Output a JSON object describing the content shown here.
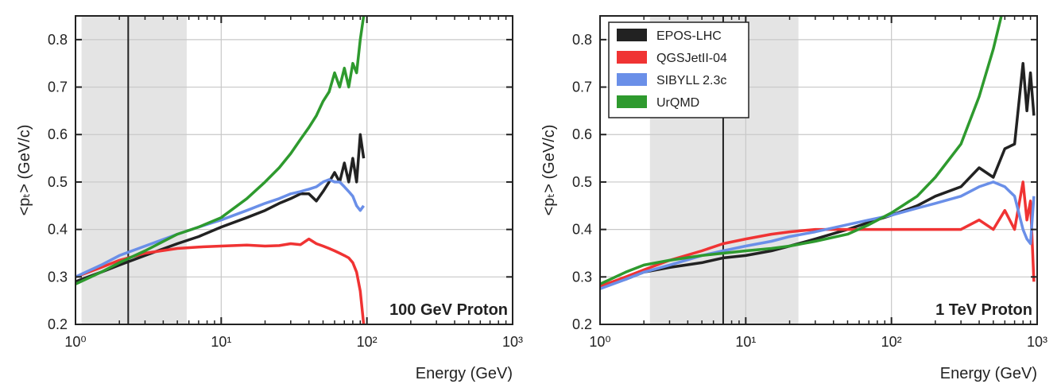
{
  "chart_data": [
    {
      "type": "line",
      "annotation": "100 GeV Proton",
      "xlabel": "Energy (GeV)",
      "ylabel": "<pₜ> (GeV/c)",
      "xscale": "log",
      "xlim": [
        1,
        1000
      ],
      "ylim": [
        0.2,
        0.85
      ],
      "grid": true,
      "legend": "none",
      "shaded_region": [
        1.1,
        5.8
      ],
      "vertical_line": 2.3,
      "x_tick_labels": [
        "10⁰",
        "10¹",
        "10²",
        "10³"
      ],
      "y_tick_labels": [
        "0.2",
        "0.3",
        "0.4",
        "0.5",
        "0.6",
        "0.7",
        "0.8"
      ],
      "series": [
        {
          "name": "EPOS-LHC",
          "color": "#222222",
          "x": [
            1,
            1.5,
            2,
            3,
            5,
            7,
            10,
            15,
            20,
            25,
            30,
            35,
            40,
            45,
            50,
            55,
            60,
            65,
            70,
            75,
            80,
            85,
            90,
            95
          ],
          "y": [
            0.29,
            0.31,
            0.325,
            0.345,
            0.37,
            0.385,
            0.405,
            0.425,
            0.44,
            0.455,
            0.465,
            0.475,
            0.475,
            0.46,
            0.48,
            0.5,
            0.52,
            0.5,
            0.54,
            0.5,
            0.55,
            0.5,
            0.6,
            0.55
          ]
        },
        {
          "name": "QGSJetII-04",
          "color": "#f03333",
          "x": [
            1,
            1.5,
            2,
            3,
            5,
            7,
            10,
            15,
            20,
            25,
            30,
            35,
            40,
            45,
            50,
            55,
            60,
            65,
            70,
            75,
            80,
            85,
            90,
            95
          ],
          "y": [
            0.3,
            0.32,
            0.335,
            0.35,
            0.36,
            0.363,
            0.365,
            0.367,
            0.365,
            0.366,
            0.37,
            0.368,
            0.38,
            0.37,
            0.365,
            0.36,
            0.355,
            0.35,
            0.345,
            0.34,
            0.33,
            0.31,
            0.27,
            0.2
          ]
        },
        {
          "name": "SIBYLL 2.3c",
          "color": "#6a8fe8",
          "x": [
            1,
            1.5,
            2,
            3,
            5,
            7,
            10,
            15,
            20,
            25,
            30,
            35,
            40,
            45,
            50,
            55,
            60,
            65,
            70,
            75,
            80,
            85,
            90,
            95
          ],
          "y": [
            0.3,
            0.325,
            0.345,
            0.365,
            0.39,
            0.405,
            0.42,
            0.44,
            0.455,
            0.465,
            0.475,
            0.48,
            0.485,
            0.49,
            0.5,
            0.505,
            0.5,
            0.5,
            0.49,
            0.48,
            0.47,
            0.45,
            0.44,
            0.45
          ]
        },
        {
          "name": "UrQMD",
          "color": "#2e9a2e",
          "x": [
            1,
            1.5,
            2,
            3,
            5,
            7,
            10,
            15,
            20,
            25,
            30,
            35,
            40,
            45,
            50,
            55,
            60,
            65,
            70,
            75,
            80,
            85,
            90,
            95
          ],
          "y": [
            0.285,
            0.31,
            0.33,
            0.355,
            0.39,
            0.405,
            0.425,
            0.465,
            0.5,
            0.53,
            0.56,
            0.59,
            0.615,
            0.64,
            0.67,
            0.69,
            0.73,
            0.7,
            0.74,
            0.7,
            0.75,
            0.73,
            0.8,
            0.85
          ]
        }
      ]
    },
    {
      "type": "line",
      "annotation": "1 TeV Proton",
      "xlabel": "Energy (GeV)",
      "ylabel": "<pₜ> (GeV/c)",
      "xscale": "log",
      "xlim": [
        1,
        1000
      ],
      "ylim": [
        0.2,
        0.85
      ],
      "grid": true,
      "legend": "top-left",
      "shaded_region": [
        2.2,
        23
      ],
      "vertical_line": 7,
      "x_tick_labels": [
        "10⁰",
        "10¹",
        "10²",
        "10³"
      ],
      "y_tick_labels": [
        "0.2",
        "0.3",
        "0.4",
        "0.5",
        "0.6",
        "0.7",
        "0.8"
      ],
      "series": [
        {
          "name": "EPOS-LHC",
          "color": "#222222",
          "x": [
            1,
            1.5,
            2,
            3,
            5,
            7,
            10,
            15,
            20,
            30,
            50,
            70,
            100,
            150,
            200,
            300,
            400,
            500,
            600,
            700,
            800,
            850,
            900,
            950
          ],
          "y": [
            0.28,
            0.295,
            0.31,
            0.32,
            0.33,
            0.34,
            0.345,
            0.355,
            0.365,
            0.38,
            0.4,
            0.415,
            0.43,
            0.45,
            0.47,
            0.49,
            0.53,
            0.51,
            0.57,
            0.58,
            0.75,
            0.65,
            0.73,
            0.64
          ]
        },
        {
          "name": "QGSJetII-04",
          "color": "#f03333",
          "x": [
            1,
            1.5,
            2,
            3,
            5,
            7,
            10,
            15,
            20,
            30,
            50,
            70,
            100,
            150,
            200,
            300,
            400,
            500,
            600,
            700,
            800,
            850,
            900,
            950
          ],
          "y": [
            0.28,
            0.3,
            0.315,
            0.335,
            0.355,
            0.37,
            0.38,
            0.39,
            0.395,
            0.4,
            0.4,
            0.4,
            0.4,
            0.4,
            0.4,
            0.4,
            0.42,
            0.4,
            0.44,
            0.4,
            0.5,
            0.42,
            0.46,
            0.29
          ]
        },
        {
          "name": "SIBYLL 2.3c",
          "color": "#6a8fe8",
          "x": [
            1,
            1.5,
            2,
            3,
            5,
            7,
            10,
            15,
            20,
            30,
            50,
            70,
            100,
            150,
            200,
            300,
            400,
            500,
            600,
            700,
            800,
            850,
            900,
            950
          ],
          "y": [
            0.275,
            0.295,
            0.31,
            0.325,
            0.345,
            0.355,
            0.365,
            0.375,
            0.385,
            0.395,
            0.41,
            0.42,
            0.43,
            0.445,
            0.455,
            0.47,
            0.49,
            0.5,
            0.49,
            0.47,
            0.4,
            0.38,
            0.37,
            0.47
          ]
        },
        {
          "name": "UrQMD",
          "color": "#2e9a2e",
          "x": [
            1,
            1.5,
            2,
            3,
            5,
            7,
            10,
            15,
            20,
            30,
            50,
            70,
            100,
            150,
            200,
            300,
            400,
            500,
            600
          ],
          "y": [
            0.285,
            0.31,
            0.325,
            0.335,
            0.345,
            0.35,
            0.355,
            0.36,
            0.365,
            0.375,
            0.39,
            0.41,
            0.435,
            0.47,
            0.51,
            0.58,
            0.68,
            0.78,
            0.88
          ]
        }
      ]
    }
  ]
}
